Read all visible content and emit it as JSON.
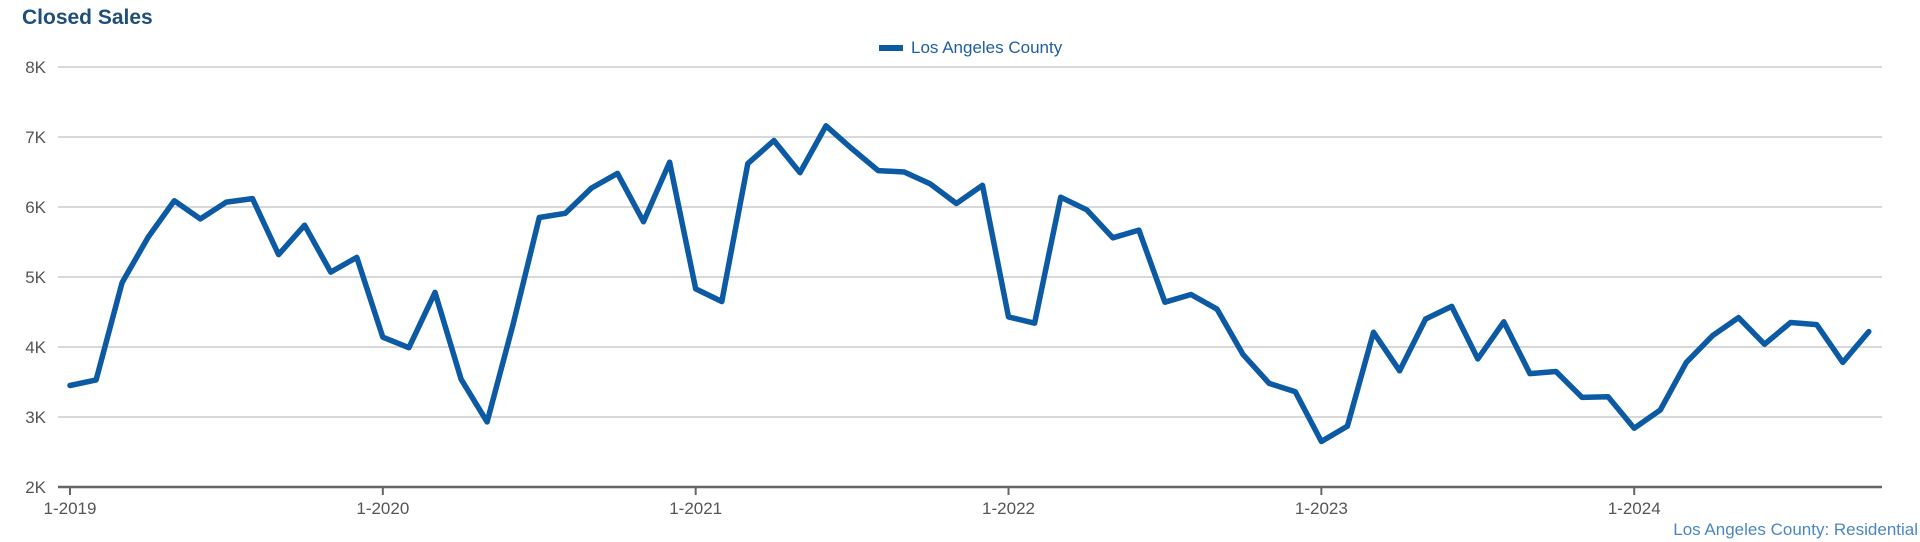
{
  "header": {
    "title": "Closed Sales"
  },
  "footer": {
    "source": "Los Angeles County: Residential"
  },
  "chart_data": {
    "type": "line",
    "title": "Closed Sales",
    "xlabel": "",
    "ylabel": "",
    "ylim": [
      2000,
      8000
    ],
    "ytick_values": [
      2000,
      3000,
      4000,
      5000,
      6000,
      7000,
      8000
    ],
    "ytick_labels": [
      "2K",
      "3K",
      "4K",
      "5K",
      "6K",
      "7K",
      "8K"
    ],
    "xtick_labels": [
      "1-2019",
      "1-2020",
      "1-2021",
      "1-2022",
      "1-2023",
      "1-2024"
    ],
    "xtick_index": [
      0,
      12,
      24,
      36,
      48,
      60
    ],
    "grid": true,
    "legend_position": "top-center",
    "colors": {
      "series": "#0b5aa3",
      "grid": "#cccccc",
      "axis": "#666666"
    },
    "x": [
      "1-2019",
      "2-2019",
      "3-2019",
      "4-2019",
      "5-2019",
      "6-2019",
      "7-2019",
      "8-2019",
      "9-2019",
      "10-2019",
      "11-2019",
      "12-2019",
      "1-2020",
      "2-2020",
      "3-2020",
      "4-2020",
      "5-2020",
      "6-2020",
      "7-2020",
      "8-2020",
      "9-2020",
      "10-2020",
      "11-2020",
      "12-2020",
      "1-2021",
      "2-2021",
      "3-2021",
      "4-2021",
      "5-2021",
      "6-2021",
      "7-2021",
      "8-2021",
      "9-2021",
      "10-2021",
      "11-2021",
      "12-2021",
      "1-2022",
      "2-2022",
      "3-2022",
      "4-2022",
      "5-2022",
      "6-2022",
      "7-2022",
      "8-2022",
      "9-2022",
      "10-2022",
      "11-2022",
      "12-2022",
      "1-2023",
      "2-2023",
      "3-2023",
      "4-2023",
      "5-2023",
      "6-2023",
      "7-2023",
      "8-2023",
      "9-2023",
      "10-2023",
      "11-2023",
      "12-2023",
      "1-2024",
      "2-2024",
      "3-2024",
      "4-2024",
      "5-2024",
      "6-2024",
      "7-2024",
      "8-2024",
      "9-2024",
      "10-2024"
    ],
    "series": [
      {
        "name": "Los Angeles County",
        "values": [
          3450,
          3530,
          4920,
          5570,
          6090,
          5830,
          6070,
          6120,
          5320,
          5740,
          5070,
          5280,
          4140,
          3990,
          4780,
          3540,
          2930,
          4330,
          5850,
          5910,
          6270,
          6480,
          5790,
          6640,
          4830,
          4650,
          6620,
          6950,
          6490,
          7160,
          6830,
          6520,
          6500,
          6330,
          6050,
          6310,
          4430,
          4340,
          6140,
          5960,
          5560,
          5670,
          4640,
          4750,
          4540,
          3890,
          3480,
          3360,
          2650,
          2870,
          4210,
          3660,
          4400,
          4580,
          3830,
          4360,
          3620,
          3650,
          3280,
          3290,
          2840,
          3100,
          3780,
          4160,
          4420,
          4040,
          4350,
          4320,
          3780,
          4220
        ]
      }
    ]
  }
}
